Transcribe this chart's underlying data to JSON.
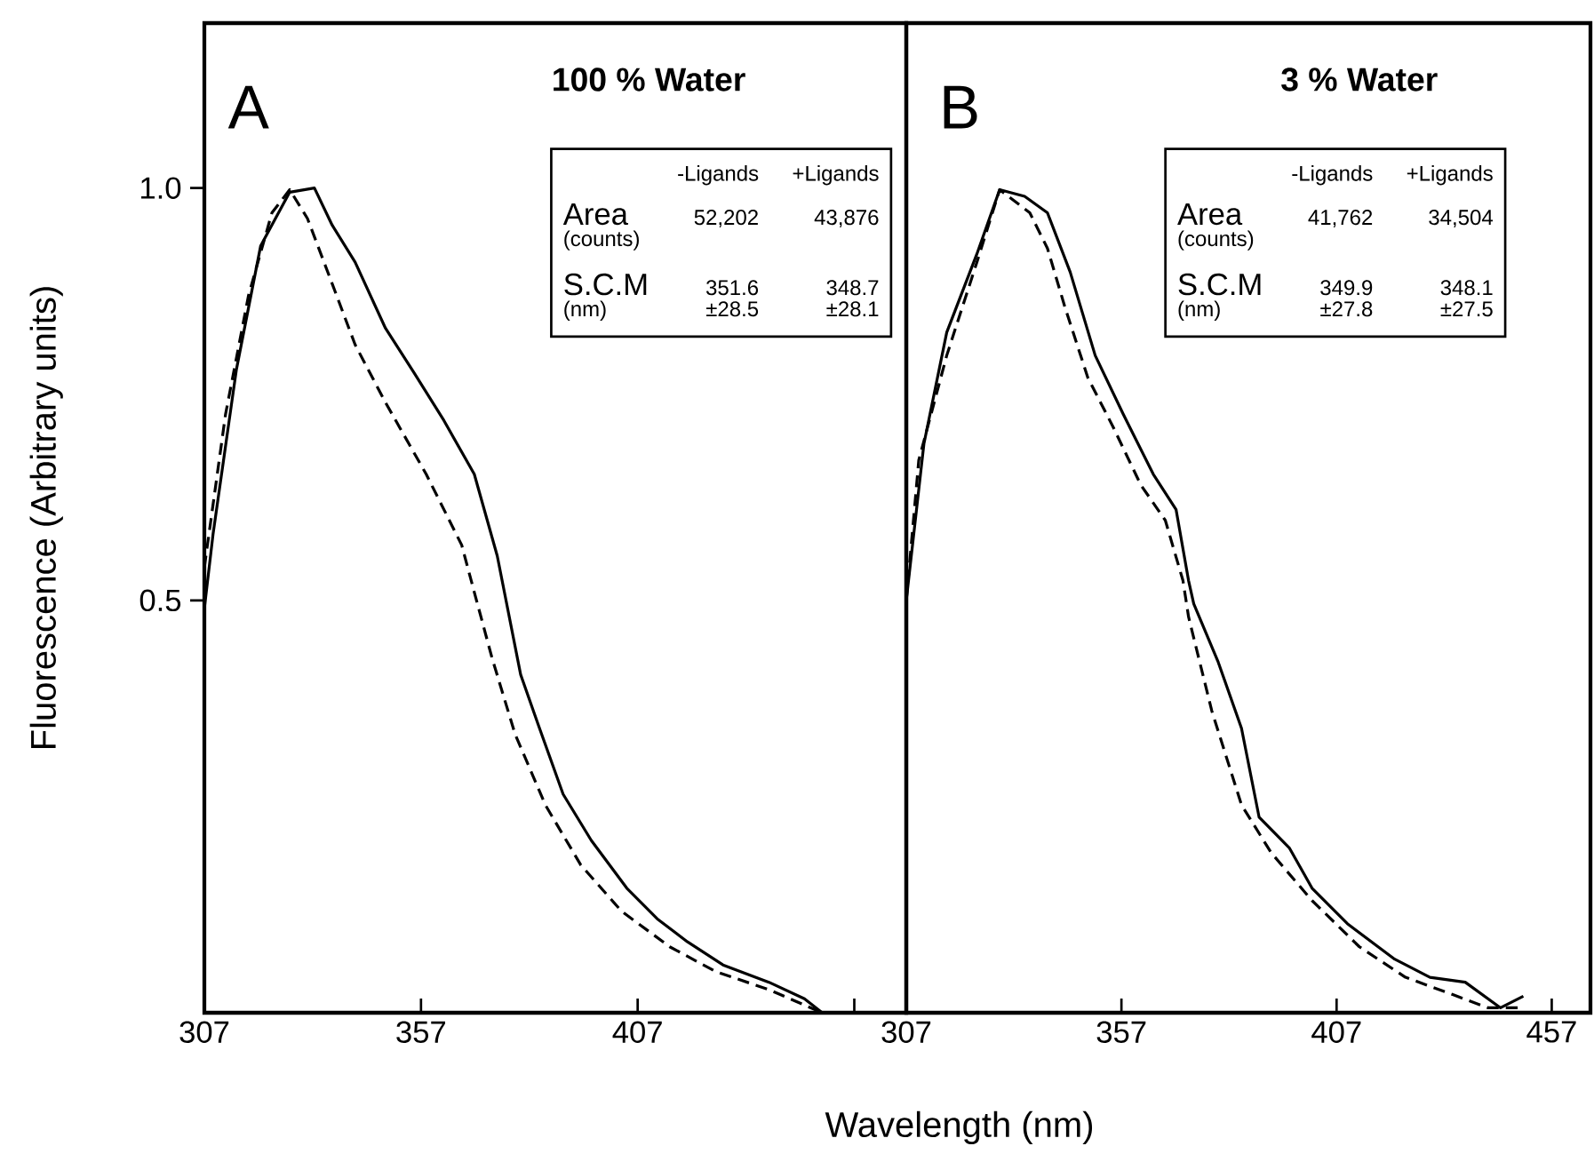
{
  "chart_data": [
    {
      "type": "line",
      "title": "A",
      "subtitle": "100 % Water",
      "xlabel": "Wavelength (nm)",
      "ylabel": "Fluorescence (Arbitrary units)",
      "xlim": [
        307,
        469
      ],
      "ylim": [
        0,
        1.2
      ],
      "xticks": [
        307,
        357,
        407,
        {
          "value": 457,
          "label": null
        }
      ],
      "yticks": [
        {
          "value": 0.5,
          "label": "0.5"
        },
        {
          "value": 1,
          "label": "1.0"
        }
      ],
      "annotations": [
        "-Ligands",
        "+Ligands",
        "Area",
        "(counts)",
        "52,202",
        "43,876",
        "S.C.M",
        "(nm)",
        "351.6",
        "348.7",
        "±28.5",
        "±28.1"
      ],
      "series": [
        {
          "color": "#000000",
          "line_style": "solid",
          "x": [
            307,
            309,
            314.4,
            320,
            326.7,
            332.4,
            336.5,
            341.8,
            348.8,
            355.4,
            362.3,
            369.3,
            374.6,
            380,
            384,
            389.8,
            396.3,
            404.5,
            411.5,
            418.5,
            426.7,
            437.3,
            445.5,
            449.6
          ],
          "values": [
            0.49,
            0.58,
            0.78,
            0.93,
            0.995,
            1.0,
            0.955,
            0.91,
            0.83,
            0.776,
            0.718,
            0.653,
            0.554,
            0.41,
            0.35,
            0.265,
            0.209,
            0.151,
            0.114,
            0.086,
            0.058,
            0.037,
            0.017,
            0
          ]
        },
        {
          "color": "#000000",
          "line_style": "dashed",
          "x": [
            307,
            311.9,
            317.2,
            322.6,
            326.7,
            330.8,
            336.5,
            341.8,
            348.8,
            358.2,
            366.4,
            369.3,
            373.4,
            378.7,
            385.7,
            393.9,
            403.3,
            414.4,
            425,
            437.3,
            449.6
          ],
          "values": [
            0.54,
            0.726,
            0.87,
            0.97,
            0.998,
            0.963,
            0.884,
            0.81,
            0.74,
            0.653,
            0.567,
            0.51,
            0.43,
            0.338,
            0.252,
            0.179,
            0.123,
            0.08,
            0.05,
            0.028,
            0
          ]
        }
      ]
    },
    {
      "type": "line",
      "title": "B",
      "subtitle": "3 % Water",
      "tick_labels": "x",
      "xlim": [
        307,
        466
      ],
      "ylim": [
        0,
        1.2
      ],
      "xticks": [
        307,
        357,
        407,
        457
      ],
      "annotations": [
        "-Ligands",
        "+Ligands",
        "Area",
        "(counts)",
        "41,762",
        "34,504",
        "S.C.M",
        "(nm)",
        "349.9",
        "348.1",
        "±27.8",
        "±27.5"
      ],
      "series": [
        {
          "color": "#000000",
          "line_style": "solid",
          "x": [
            307,
            311.1,
            316.4,
            323.4,
            328.7,
            334.5,
            339.8,
            345.1,
            350.9,
            357.4,
            364.4,
            369.7,
            372.6,
            373.8,
            379.5,
            384.9,
            389,
            396,
            401.3,
            409.5,
            420.5,
            428.7,
            436.9,
            445.1,
            450.4
          ],
          "values": [
            0.5,
            0.69,
            0.825,
            0.92,
            0.998,
            0.99,
            0.97,
            0.898,
            0.797,
            0.726,
            0.653,
            0.61,
            0.524,
            0.496,
            0.425,
            0.345,
            0.237,
            0.2,
            0.151,
            0.108,
            0.065,
            0.043,
            0.037,
            0.006,
            0.02
          ]
        },
        {
          "color": "#000000",
          "line_style": "dashed",
          "x": [
            307,
            309.9,
            316.4,
            323.4,
            328.7,
            335.7,
            339.8,
            343.9,
            349.2,
            355,
            361.5,
            367.2,
            371.3,
            372.6,
            378,
            384.9,
            391.8,
            401.3,
            412.3,
            423,
            434,
            442.2,
            449.2
          ],
          "values": [
            0.5,
            0.67,
            0.797,
            0.91,
            0.998,
            0.97,
            0.927,
            0.855,
            0.77,
            0.711,
            0.64,
            0.597,
            0.524,
            0.48,
            0.366,
            0.252,
            0.194,
            0.136,
            0.08,
            0.043,
            0.022,
            0.006,
            0.006
          ]
        }
      ]
    }
  ]
}
